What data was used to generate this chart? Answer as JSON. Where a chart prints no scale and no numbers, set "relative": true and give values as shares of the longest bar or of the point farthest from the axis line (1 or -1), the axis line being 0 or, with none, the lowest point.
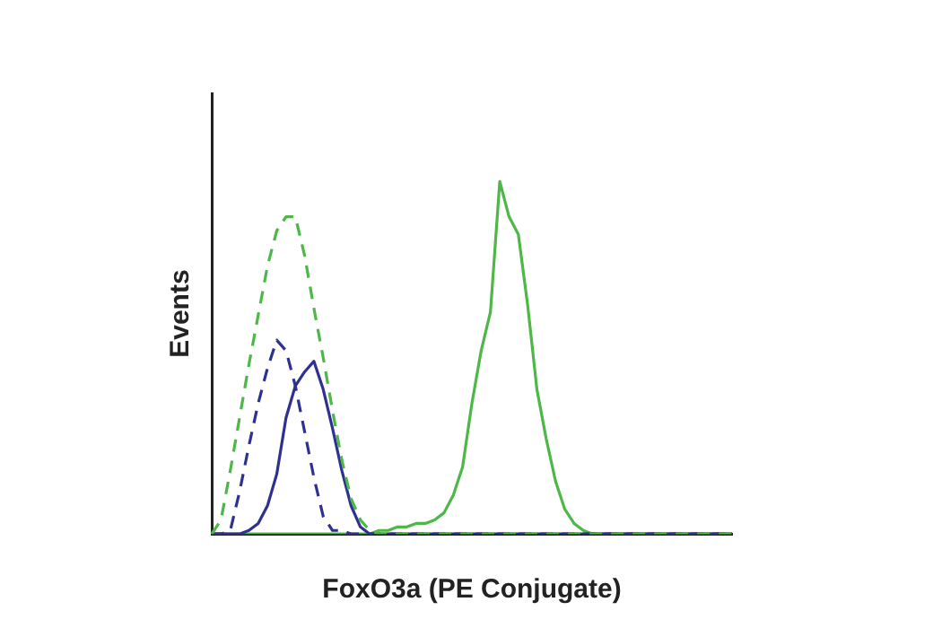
{
  "chart_data": {
    "type": "line",
    "relative": true,
    "xlabel": "FoxO3a (PE Conjugate)",
    "ylabel": "Events",
    "legend": false,
    "grid": false,
    "marker": "none",
    "categories": [
      null,
      null,
      null,
      null,
      null,
      null,
      null,
      null,
      null,
      null,
      null,
      null,
      null,
      null,
      null,
      null,
      null,
      null,
      null,
      null,
      null,
      null,
      null,
      null,
      null,
      null,
      null,
      null,
      null,
      null,
      null,
      null,
      null,
      null,
      null,
      null,
      null,
      null,
      null,
      null,
      null,
      null,
      null,
      null,
      null,
      null,
      null,
      null,
      null,
      null,
      null,
      null,
      null,
      null,
      null,
      null,
      null
    ],
    "series": [
      {
        "color": "#4db848",
        "line_style": "dashed",
        "values": [
          0,
          0.04,
          0.18,
          0.33,
          0.48,
          0.62,
          0.76,
          0.86,
          0.9,
          0.9,
          0.79,
          0.64,
          0.5,
          0.35,
          0.21,
          0.1,
          0.04,
          0.01,
          0,
          0,
          0,
          0,
          0,
          0,
          0,
          0,
          0,
          0,
          0,
          0,
          0,
          0,
          0,
          0,
          0,
          0,
          0,
          0,
          0,
          0,
          0,
          0,
          0,
          0,
          0,
          0,
          0,
          0,
          0,
          0,
          0,
          0,
          0,
          0,
          0,
          0,
          0
        ]
      },
      {
        "color": "#2e3192",
        "line_style": "dashed",
        "values": [
          0,
          0,
          0.01,
          0.12,
          0.25,
          0.37,
          0.47,
          0.55,
          0.52,
          0.42,
          0.29,
          0.16,
          0.05,
          0.01,
          0.01,
          0,
          0,
          0,
          0,
          0,
          0,
          0,
          0,
          0,
          0,
          0,
          0,
          0,
          0,
          0,
          0,
          0,
          0,
          0,
          0,
          0,
          0,
          0,
          0,
          0,
          0,
          0,
          0,
          0,
          0,
          0,
          0,
          0,
          0,
          0,
          0,
          0,
          0,
          0,
          0,
          0,
          0
        ]
      },
      {
        "color": "#2e3192",
        "line_style": "solid",
        "values": [
          0,
          0,
          0,
          0,
          0.01,
          0.03,
          0.08,
          0.17,
          0.33,
          0.42,
          0.46,
          0.49,
          0.41,
          0.3,
          0.18,
          0.08,
          0.02,
          0,
          0,
          0,
          0,
          0,
          0,
          0,
          0,
          0,
          0,
          0,
          0,
          0,
          0,
          0,
          0,
          0,
          0,
          0,
          0,
          0,
          0,
          0,
          0,
          0,
          0,
          0,
          0,
          0,
          0,
          0,
          0,
          0,
          0,
          0,
          0,
          0,
          0,
          0,
          0
        ]
      },
      {
        "color": "#4db848",
        "line_style": "solid",
        "values": [
          0,
          0,
          0,
          0,
          0,
          0,
          0,
          0,
          0,
          0,
          0,
          0,
          0,
          0,
          0,
          0,
          0,
          0,
          0.01,
          0.01,
          0.02,
          0.02,
          0.03,
          0.03,
          0.04,
          0.06,
          0.11,
          0.19,
          0.37,
          0.52,
          0.63,
          1,
          0.9,
          0.85,
          0.65,
          0.41,
          0.27,
          0.15,
          0.07,
          0.03,
          0.01,
          0,
          0,
          0,
          0,
          0,
          0,
          0,
          0,
          0,
          0,
          0,
          0,
          0,
          0,
          0,
          0
        ]
      }
    ]
  }
}
